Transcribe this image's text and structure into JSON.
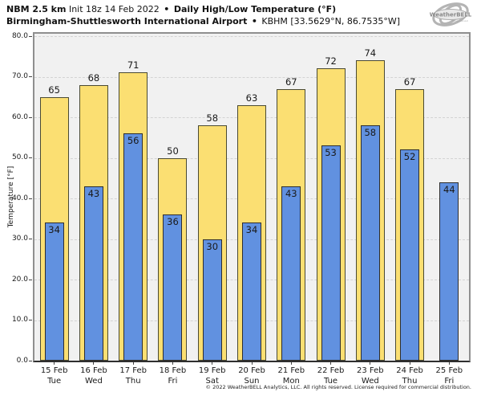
{
  "header": {
    "model": "NBM 2.5 km",
    "init": "Init 18z 14 Feb 2022",
    "sep": "•",
    "product": "Daily High/Low Temperature (°F)",
    "station_name": "Birmingham-Shuttlesworth International Airport",
    "station_meta": "KBHM [33.5629°N, 86.7535°W]"
  },
  "logo": {
    "brand": "WeatherBELL",
    "tagline": "Analytics LLC"
  },
  "chart_data": {
    "type": "bar",
    "title": "Daily High/Low Temperature (°F)",
    "xlabel": "",
    "ylabel": "Temperature [°F]",
    "ylim": [
      0,
      80
    ],
    "ytick_step": 10,
    "ytick_labels": [
      "0.0",
      "10.0",
      "20.0",
      "30.0",
      "40.0",
      "50.0",
      "60.0",
      "70.0",
      "80.0"
    ],
    "grid": true,
    "legend_position": "none",
    "categories": [
      {
        "date": "15 Feb",
        "weekday": "Tue"
      },
      {
        "date": "16 Feb",
        "weekday": "Wed"
      },
      {
        "date": "17 Feb",
        "weekday": "Thu"
      },
      {
        "date": "18 Feb",
        "weekday": "Fri"
      },
      {
        "date": "19 Feb",
        "weekday": "Sat"
      },
      {
        "date": "20 Feb",
        "weekday": "Sun"
      },
      {
        "date": "21 Feb",
        "weekday": "Mon"
      },
      {
        "date": "22 Feb",
        "weekday": "Tue"
      },
      {
        "date": "23 Feb",
        "weekday": "Wed"
      },
      {
        "date": "24 Feb",
        "weekday": "Thu"
      },
      {
        "date": "25 Feb",
        "weekday": "Fri"
      }
    ],
    "series": [
      {
        "name": "Daily High",
        "color": "#fbdf72",
        "border_color": "#4a4a33",
        "values": [
          65,
          68,
          71,
          50,
          58,
          63,
          67,
          72,
          74,
          67,
          null
        ]
      },
      {
        "name": "Daily Low",
        "color": "#6191e0",
        "border_color": "#2e2e2e",
        "values": [
          34,
          43,
          56,
          36,
          30,
          34,
          43,
          53,
          58,
          52,
          44
        ]
      }
    ]
  },
  "colors": {
    "plot_background": "#f1f1f1",
    "page_background": "#ffffff",
    "gridline": "#d3d3d3",
    "plot_border": "#8f8f8f",
    "axis_line": "#2f2f2f",
    "text": "#1a1a1a"
  },
  "footer": {
    "copyright": "© 2022 WeatherBELL Analytics, LLC. All rights reserved. License required for commercial distribution."
  }
}
